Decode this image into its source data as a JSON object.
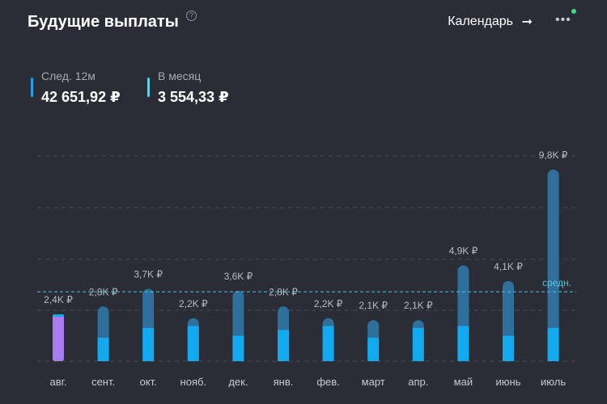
{
  "header": {
    "title": "Будущие выплаты",
    "help_icon": "question-circle-icon",
    "calendar_label": "Календарь",
    "arrow_icon": "arrow-right-icon",
    "more_icon": "more-dots-icon"
  },
  "stats": {
    "next12": {
      "label": "След. 12м",
      "value": "42 651,92 ₽",
      "color": "#1aa3e8"
    },
    "monthly": {
      "label": "В месяц",
      "value": "3 554,33 ₽",
      "color": "#5fd0e8"
    }
  },
  "colors": {
    "background": "#2b2d36",
    "bar_top": "#2f6f9c",
    "bar_base": "#12a9ef",
    "current_month": "#a97df0",
    "average_line": "#49c6e5",
    "grid": "#4a4c57"
  },
  "chart_data": {
    "type": "bar",
    "categories": [
      "авг.",
      "сент.",
      "окт.",
      "нояб.",
      "дек.",
      "янв.",
      "фев.",
      "март",
      "апр.",
      "май",
      "июнь",
      "июль"
    ],
    "value_labels": [
      "2,4K ₽",
      "2,8K ₽",
      "3,7K ₽",
      "2,2K ₽",
      "3,6K ₽",
      "2,8K ₽",
      "2,2K ₽",
      "2,1K ₽",
      "2,1K ₽",
      "4,9K ₽",
      "4,1K ₽",
      "9,8K ₽"
    ],
    "series": [
      {
        "values": [
          2.4,
          2.8,
          3.7,
          2.2,
          3.6,
          2.8,
          2.2,
          2.1,
          2.1,
          4.9,
          4.1,
          9.8
        ]
      },
      {
        "values": [
          2.4,
          1.2,
          1.7,
          1.8,
          1.3,
          1.6,
          1.8,
          1.2,
          1.7,
          1.8,
          1.3,
          1.7
        ]
      }
    ],
    "average": {
      "value": 3.55,
      "label": "средн."
    },
    "ylim": [
      0,
      10.5
    ],
    "grid": true
  }
}
